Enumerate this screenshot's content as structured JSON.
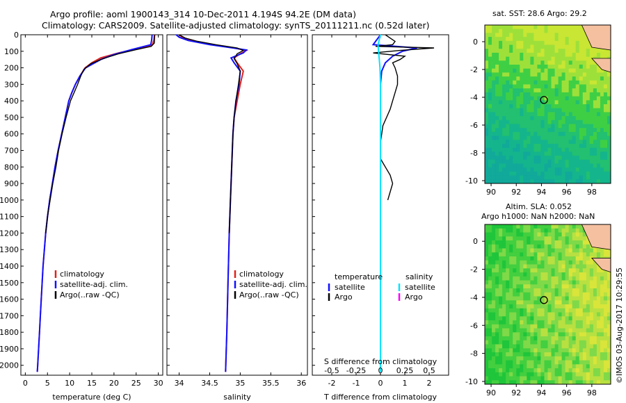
{
  "title": {
    "line1": "Argo profile: aoml 1900143_314 10-Dec-2011 4.194S 94.2E (DM data)",
    "line2": "Climatology: CARS2009. Satellite-adjusted climatology: synTS_20111211.nc (0.52d later)"
  },
  "watermark": "©IMOS 03-Aug-2017 10:29:55",
  "colors": {
    "climatology": "#ff0000",
    "satellite": "#0000ff",
    "argo": "#000000",
    "sat_salinity": "#00e5ff",
    "argo_salinity": "#ff00ff"
  },
  "chart_data": [
    {
      "id": "temperature-profile",
      "type": "line",
      "xlabel": "temperature (deg C)",
      "ylabel": "",
      "xlim": [
        -1,
        31
      ],
      "ylim": [
        2060,
        0
      ],
      "xticks": [
        0,
        5,
        10,
        15,
        20,
        25,
        30
      ],
      "yticks": [
        0,
        100,
        200,
        300,
        400,
        500,
        600,
        700,
        800,
        900,
        1000,
        1100,
        1200,
        1300,
        1400,
        1500,
        1600,
        1700,
        1800,
        1900,
        2000
      ],
      "legend": [
        "climatology",
        "satellite-adj. clim.",
        "Argo(..raw -QC)"
      ],
      "series": [
        {
          "name": "climatology",
          "color": "red",
          "points": [
            [
              29.1,
              0
            ],
            [
              29.0,
              30
            ],
            [
              28.7,
              60
            ],
            [
              26,
              80
            ],
            [
              21,
              110
            ],
            [
              17,
              140
            ],
            [
              15,
              170
            ],
            [
              13.5,
              200
            ],
            [
              12.3,
              250
            ],
            [
              11.3,
              300
            ],
            [
              10.5,
              350
            ],
            [
              9.8,
              400
            ],
            [
              9,
              500
            ],
            [
              8.2,
              600
            ],
            [
              7.4,
              700
            ],
            [
              6.7,
              800
            ],
            [
              6.1,
              900
            ],
            [
              5.5,
              1000
            ],
            [
              5,
              1100
            ],
            [
              4.6,
              1200
            ],
            [
              4.3,
              1300
            ],
            [
              4,
              1400
            ],
            [
              3.8,
              1500
            ],
            [
              3.6,
              1600
            ],
            [
              3.4,
              1700
            ],
            [
              3.2,
              1800
            ],
            [
              3,
              1900
            ],
            [
              2.8,
              2000
            ],
            [
              2.7,
              2040
            ]
          ]
        },
        {
          "name": "satellite-adj. clim.",
          "color": "blue",
          "points": [
            [
              28.6,
              0
            ],
            [
              28.5,
              30
            ],
            [
              28.3,
              60
            ],
            [
              24,
              90
            ],
            [
              20,
              120
            ],
            [
              17,
              150
            ],
            [
              15,
              180
            ],
            [
              13.6,
              200
            ],
            [
              12.3,
              250
            ],
            [
              11.3,
              300
            ],
            [
              10.5,
              350
            ],
            [
              9.8,
              400
            ],
            [
              9,
              500
            ],
            [
              8.2,
              600
            ],
            [
              7.4,
              700
            ],
            [
              6.7,
              800
            ],
            [
              6.1,
              900
            ],
            [
              5.5,
              1000
            ],
            [
              5,
              1100
            ],
            [
              4.6,
              1200
            ],
            [
              4.3,
              1300
            ],
            [
              4,
              1400
            ],
            [
              3.8,
              1500
            ],
            [
              3.6,
              1600
            ],
            [
              3.4,
              1700
            ],
            [
              3.2,
              1800
            ],
            [
              3,
              1900
            ],
            [
              2.8,
              2000
            ],
            [
              2.7,
              2040
            ]
          ]
        },
        {
          "name": "Argo(..raw -QC)",
          "color": "black",
          "points": [
            [
              29.2,
              0
            ],
            [
              29.1,
              50
            ],
            [
              28.4,
              70
            ],
            [
              25,
              90
            ],
            [
              21,
              115
            ],
            [
              17.5,
              145
            ],
            [
              14.8,
              175
            ],
            [
              13.2,
              210
            ],
            [
              12.5,
              250
            ],
            [
              11.8,
              300
            ],
            [
              11,
              350
            ],
            [
              10.2,
              400
            ],
            [
              9.2,
              500
            ],
            [
              8.3,
              600
            ],
            [
              7.5,
              700
            ],
            [
              6.9,
              800
            ],
            [
              6.2,
              900
            ],
            [
              5.6,
              1000
            ],
            [
              5,
              1100
            ],
            [
              4.6,
              1200
            ]
          ]
        }
      ]
    },
    {
      "id": "salinity-profile",
      "type": "line",
      "xlabel": "salinity",
      "xlim": [
        33.8,
        36.1
      ],
      "ylim": [
        2060,
        0
      ],
      "xticks": [
        34,
        34.5,
        35,
        35.5,
        36
      ],
      "legend": [
        "climatology",
        "satellite-adj. clim.",
        "Argo(..raw -QC)"
      ],
      "series": [
        {
          "name": "climatology",
          "color": "red",
          "points": [
            [
              34.0,
              0
            ],
            [
              34.05,
              15
            ],
            [
              34.2,
              35
            ],
            [
              34.55,
              60
            ],
            [
              34.9,
              80
            ],
            [
              35.1,
              95
            ],
            [
              35.0,
              115
            ],
            [
              34.9,
              140
            ],
            [
              34.95,
              170
            ],
            [
              35.05,
              220
            ],
            [
              35.0,
              300
            ],
            [
              34.95,
              400
            ],
            [
              34.9,
              500
            ],
            [
              34.88,
              600
            ],
            [
              34.86,
              800
            ],
            [
              34.84,
              1000
            ],
            [
              34.82,
              1200
            ],
            [
              34.8,
              1500
            ],
            [
              34.78,
              1800
            ],
            [
              34.76,
              2040
            ]
          ]
        },
        {
          "name": "satellite-adj. clim.",
          "color": "blue",
          "points": [
            [
              33.95,
              0
            ],
            [
              34.0,
              15
            ],
            [
              34.15,
              35
            ],
            [
              34.5,
              60
            ],
            [
              34.85,
              78
            ],
            [
              35.1,
              92
            ],
            [
              35.05,
              110
            ],
            [
              34.85,
              140
            ],
            [
              34.9,
              170
            ],
            [
              35.0,
              220
            ],
            [
              34.98,
              300
            ],
            [
              34.93,
              400
            ],
            [
              34.9,
              500
            ],
            [
              34.88,
              600
            ],
            [
              34.86,
              800
            ],
            [
              34.84,
              1000
            ],
            [
              34.82,
              1200
            ],
            [
              34.8,
              1500
            ],
            [
              34.78,
              1800
            ],
            [
              34.76,
              2040
            ]
          ]
        },
        {
          "name": "Argo(..raw -QC)",
          "color": "black",
          "points": [
            [
              34.0,
              0
            ],
            [
              34.1,
              20
            ],
            [
              34.3,
              40
            ],
            [
              34.6,
              60
            ],
            [
              34.95,
              80
            ],
            [
              35.05,
              95
            ],
            [
              34.95,
              115
            ],
            [
              34.9,
              145
            ],
            [
              34.95,
              175
            ],
            [
              35.0,
              220
            ],
            [
              34.97,
              300
            ],
            [
              34.93,
              400
            ],
            [
              34.9,
              500
            ],
            [
              34.88,
              600
            ],
            [
              34.86,
              800
            ],
            [
              34.84,
              1000
            ],
            [
              34.82,
              1200
            ]
          ]
        }
      ]
    },
    {
      "id": "difference-profile",
      "type": "line",
      "xlabel": "T difference from climatology",
      "x2label": "S difference from climatology",
      "xlim": [
        -2.8,
        2.8
      ],
      "ylim": [
        2060,
        0
      ],
      "xticks": [
        -2,
        -1,
        0,
        1,
        2
      ],
      "x2ticks": [
        -0.5,
        -0.25,
        0,
        0.25,
        0.5
      ],
      "legend_headers": [
        "temperature",
        "salinity"
      ],
      "legend": [
        "satellite",
        "Argo",
        "satellite",
        "Argo"
      ],
      "series": [
        {
          "name": "T satellite",
          "color": "blue",
          "points": [
            [
              0,
              0
            ],
            [
              -0.1,
              20
            ],
            [
              -0.2,
              40
            ],
            [
              -0.3,
              60
            ],
            [
              1.5,
              80
            ],
            [
              0.9,
              100
            ],
            [
              0.5,
              130
            ],
            [
              0.2,
              170
            ],
            [
              0.05,
              220
            ],
            [
              0,
              300
            ],
            [
              0,
              500
            ],
            [
              0,
              1000
            ],
            [
              0,
              1500
            ],
            [
              0,
              2040
            ]
          ]
        },
        {
          "name": "T Argo",
          "color": "black",
          "points": [
            [
              0.2,
              0
            ],
            [
              0.4,
              20
            ],
            [
              0.6,
              40
            ],
            [
              0.5,
              60
            ],
            [
              -0.2,
              70
            ],
            [
              2.2,
              80
            ],
            [
              0.8,
              95
            ],
            [
              -0.3,
              110
            ],
            [
              1.0,
              130
            ],
            [
              0.8,
              150
            ],
            [
              0.5,
              170
            ],
            [
              0.6,
              200
            ],
            [
              0.7,
              250
            ],
            [
              0.7,
              300
            ],
            [
              0.6,
              350
            ],
            [
              0.5,
              400
            ],
            [
              0.4,
              450
            ],
            [
              0.25,
              500
            ],
            [
              0.1,
              550
            ],
            [
              0.05,
              600
            ],
            [
              0,
              650
            ],
            [
              0,
              700
            ],
            [
              0,
              750
            ],
            [
              0.2,
              800
            ],
            [
              0.4,
              850
            ],
            [
              0.5,
              900
            ],
            [
              0.4,
              950
            ],
            [
              0.3,
              1000
            ]
          ]
        },
        {
          "name": "S satellite",
          "color": "cyan",
          "points": [
            [
              0.0,
              0
            ],
            [
              -0.05,
              30
            ],
            [
              -0.1,
              60
            ],
            [
              -0.08,
              100
            ],
            [
              -0.05,
              150
            ],
            [
              -0.02,
              200
            ],
            [
              0,
              300
            ],
            [
              0,
              500
            ],
            [
              0,
              1000
            ],
            [
              0,
              1500
            ],
            [
              0,
              2040
            ]
          ]
        }
      ]
    },
    {
      "id": "sst-map",
      "type": "heatmap",
      "title": "sat. SST: 28.6 Argo: 29.2",
      "xlim": [
        89.5,
        99.5
      ],
      "ylim": [
        -10.2,
        1.2
      ],
      "xticks": [
        90,
        92,
        94,
        96,
        98
      ],
      "yticks": [
        0,
        -2,
        -4,
        -6,
        -8,
        -10
      ],
      "marker": [
        94.2,
        -4.194
      ]
    },
    {
      "id": "sla-map",
      "type": "heatmap",
      "title": "Altim. SLA: 0.052",
      "subtitle": "Argo h1000: NaN h2000: NaN",
      "xlim": [
        89.5,
        99.5
      ],
      "ylim": [
        -10.2,
        1.2
      ],
      "xticks": [
        90,
        92,
        94,
        96,
        98
      ],
      "yticks": [
        0,
        -2,
        -4,
        -6,
        -8,
        -10
      ],
      "marker": [
        94.2,
        -4.194
      ]
    }
  ]
}
